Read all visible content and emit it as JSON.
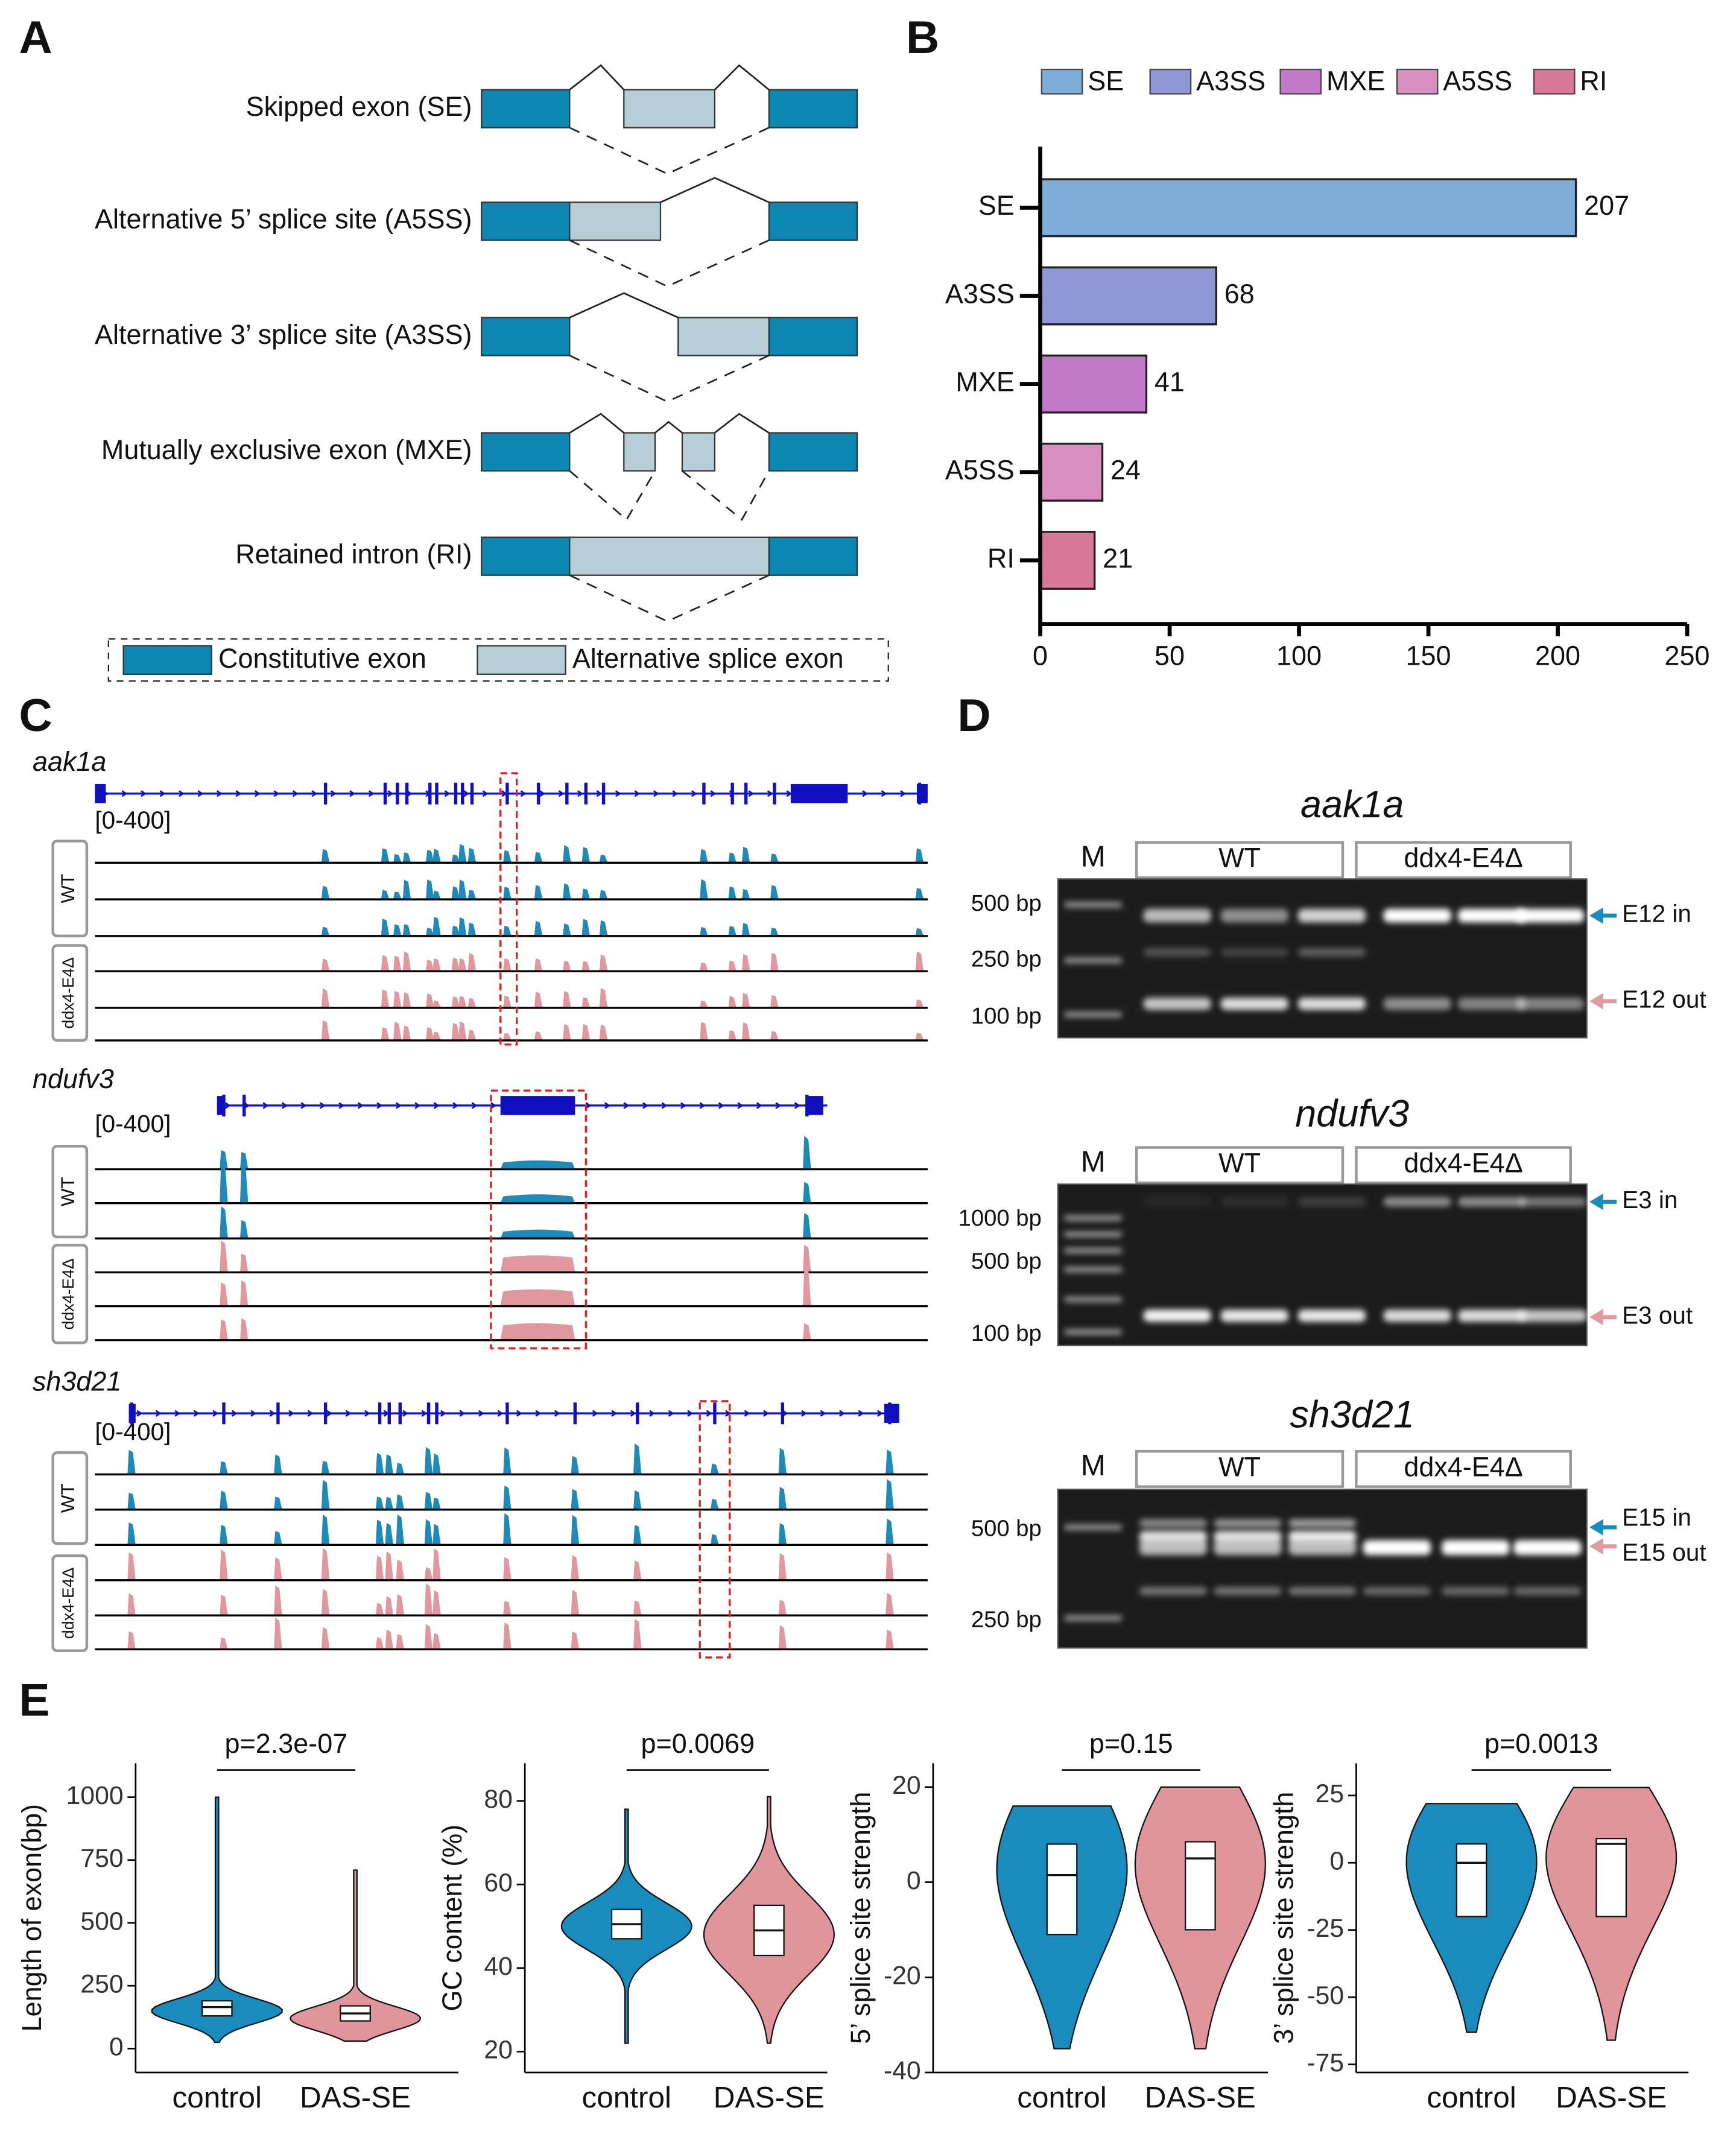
{
  "panel_labels": [
    "A",
    "B",
    "C",
    "D",
    "E"
  ],
  "splice_events": {
    "events": [
      "Skipped exon (SE)",
      "Alternative 5’ splice site (A5SS)",
      "Alternative 3’ splice site (A3SS)",
      "Mutually exclusive exon (MXE)",
      "Retained intron (RI)"
    ],
    "legend": [
      "Constitutive exon",
      "Alternative splice exon"
    ]
  },
  "tracks": [
    {
      "gene": "aak1a",
      "range": "[0-400]",
      "groups": [
        "WT",
        "ddx4-E4Δ"
      ]
    },
    {
      "gene": "ndufv3",
      "range": "[0-400]",
      "groups": [
        "WT",
        "ddx4-E4Δ"
      ]
    },
    {
      "gene": "sh3d21",
      "range": "[0-400]",
      "groups": [
        "WT",
        "ddx4-E4Δ"
      ]
    }
  ],
  "gels": [
    {
      "gene": "aak1a",
      "marker": "M",
      "groups": [
        "WT",
        "ddx4-E4Δ"
      ],
      "sizes": [
        "500 bp",
        "250 bp",
        "100 bp"
      ],
      "products": [
        "E12 in",
        "E12 out"
      ]
    },
    {
      "gene": "ndufv3",
      "marker": "M",
      "groups": [
        "WT",
        "ddx4-E4Δ"
      ],
      "sizes": [
        "1000 bp",
        "500 bp",
        "100 bp"
      ],
      "products": [
        "E3 in",
        "E3 out"
      ]
    },
    {
      "gene": "sh3d21",
      "marker": "M",
      "groups": [
        "WT",
        "ddx4-E4Δ"
      ],
      "sizes": [
        "500 bp",
        "250 bp"
      ],
      "products": [
        "E15 in",
        "E15 out"
      ]
    }
  ],
  "chart_data": [
    {
      "type": "hbar",
      "categories": [
        "SE",
        "A3SS",
        "MXE",
        "A5SS",
        "RI"
      ],
      "values": [
        207,
        68,
        41,
        24,
        21
      ],
      "colors": [
        "#7eaed8",
        "#8f96d6",
        "#c27bc8",
        "#d98fbf",
        "#d9799a"
      ],
      "legend": "top",
      "xlim": [
        0,
        250
      ],
      "xticks": [
        0,
        50,
        100,
        150,
        200,
        250
      ]
    },
    {
      "type": "violin",
      "annotation": "p=2.3e-07",
      "ylabel": "Length of exon(bp)",
      "categories": [
        "control",
        "DAS-SE"
      ],
      "colors": [
        "#1a8bbd",
        "#e0959a"
      ],
      "ylim": [
        -95,
        1135
      ],
      "yticks": [
        0,
        250,
        500,
        750,
        1000
      ],
      "stats": [
        {
          "min": 25,
          "q1": 130,
          "median": 165,
          "q3": 190,
          "max": 1000,
          "modes": [
            150
          ],
          "mode_weights": [
            1
          ]
        },
        {
          "min": 30,
          "q1": 110,
          "median": 140,
          "q3": 170,
          "max": 710,
          "modes": [
            120
          ],
          "mode_weights": [
            1
          ]
        }
      ]
    },
    {
      "type": "violin",
      "annotation": "p=0.0069",
      "ylabel": "GC content (%)",
      "categories": [
        "control",
        "DAS-SE"
      ],
      "colors": [
        "#1a8bbd",
        "#e0959a"
      ],
      "ylim": [
        15,
        89
      ],
      "yticks": [
        20,
        40,
        60,
        80
      ],
      "stats": [
        {
          "min": 22,
          "q1": 47,
          "median": 50.5,
          "q3": 54,
          "max": 78,
          "modes": [
            50
          ],
          "mode_weights": [
            1
          ]
        },
        {
          "min": 22,
          "q1": 43,
          "median": 49,
          "q3": 55,
          "max": 81,
          "modes": [
            48
          ],
          "mode_weights": [
            1
          ]
        }
      ]
    },
    {
      "type": "violin",
      "annotation": "p=0.15",
      "ylabel": "5’ splice site strength",
      "categories": [
        "control",
        "DAS-SE"
      ],
      "colors": [
        "#1a8bbd",
        "#e0959a"
      ],
      "ylim": [
        -40,
        25
      ],
      "yticks": [
        -40,
        -20,
        0,
        20
      ],
      "stats": [
        {
          "min": -35,
          "q1": -11,
          "median": 1.5,
          "q3": 8,
          "max": 16,
          "modes": [
            8,
            -10
          ],
          "mode_weights": [
            1,
            0.55
          ]
        },
        {
          "min": -35,
          "q1": -10,
          "median": 5,
          "q3": 8.5,
          "max": 20,
          "modes": [
            7,
            -10
          ],
          "mode_weights": [
            1,
            0.35
          ]
        }
      ]
    },
    {
      "type": "violin",
      "annotation": "p=0.0013",
      "ylabel": "3’ splice site strength",
      "categories": [
        "control",
        "DAS-SE"
      ],
      "colors": [
        "#1a8bbd",
        "#e0959a"
      ],
      "ylim": [
        -78,
        37
      ],
      "yticks": [
        -75,
        -50,
        -25,
        0,
        25
      ],
      "stats": [
        {
          "min": -63,
          "q1": -20,
          "median": 0,
          "q3": 7,
          "max": 22,
          "modes": [
            8,
            -22
          ],
          "mode_weights": [
            1,
            0.55
          ]
        },
        {
          "min": -66,
          "q1": -20,
          "median": 7,
          "q3": 9,
          "max": 28,
          "modes": [
            6,
            -25
          ],
          "mode_weights": [
            1,
            0.3
          ]
        }
      ]
    }
  ]
}
